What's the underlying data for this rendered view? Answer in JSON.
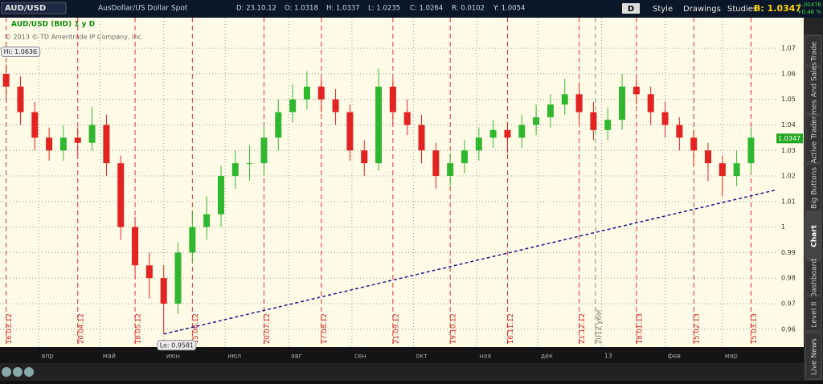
{
  "toolbar": {
    "symbol": "AUD/USD",
    "description": "AusDollar/US Dollar Spot",
    "date": "D: 23.10.12",
    "open": "O: 1.0318",
    "high": "H: 1.0337",
    "low": "L: 1.0235",
    "close": "C: 1.0264",
    "range": "R: 0.0102",
    "year": "Y: 1.0054",
    "aggregation": "D",
    "style": "Style",
    "drawings": "Drawings",
    "studies": "Studies",
    "bid": "B: 1.0347",
    "change": "+.00476",
    "change_pct": "+0.46 %"
  },
  "sidebar": {
    "tabs": [
      "Trade",
      "Times And Sales",
      "Active Trader",
      "Big Buttons",
      "Chart",
      "Dashboard",
      "Level II",
      "Live News"
    ]
  },
  "chart_data": {
    "type": "candlestick",
    "title": "AUD/USD (BID) 1 y D",
    "copyright": "© 2013 © TD Ameritrade IP Company, Inc.",
    "x": [
      "16.03.12",
      "23.03.12",
      "30.03.12",
      "06.04.12",
      "13.04.12",
      "20.04.12",
      "27.04.12",
      "04.05.12",
      "11.05.12",
      "18.05.12",
      "25.05.12",
      "01.06.12",
      "08.06.12",
      "15.06.12",
      "22.06.12",
      "29.06.12",
      "06.07.12",
      "13.07.12",
      "20.07.12",
      "27.07.12",
      "03.08.12",
      "10.08.12",
      "17.08.12",
      "24.08.12",
      "31.08.12",
      "07.09.12",
      "14.09.12",
      "21.09.12",
      "28.09.12",
      "05.10.12",
      "12.10.12",
      "19.10.12",
      "26.10.12",
      "02.11.12",
      "09.11.12",
      "16.11.12",
      "23.11.12",
      "30.11.12",
      "07.12.12",
      "14.12.12",
      "21.12.12",
      "28.12.12",
      "04.01.13",
      "11.01.13",
      "18.01.13",
      "25.01.13",
      "01.02.13",
      "08.02.13",
      "15.02.13",
      "22.02.13",
      "01.03.13",
      "08.03.13",
      "15.03.13"
    ],
    "open": [
      1.06,
      1.055,
      1.045,
      1.035,
      1.03,
      1.035,
      1.033,
      1.04,
      1.025,
      1.0,
      0.985,
      0.98,
      0.97,
      0.99,
      1.0,
      1.005,
      1.02,
      1.025,
      1.025,
      1.035,
      1.045,
      1.05,
      1.055,
      1.05,
      1.045,
      1.03,
      1.025,
      1.055,
      1.045,
      1.04,
      1.03,
      1.02,
      1.025,
      1.03,
      1.035,
      1.038,
      1.035,
      1.04,
      1.043,
      1.048,
      1.052,
      1.045,
      1.038,
      1.042,
      1.055,
      1.052,
      1.045,
      1.04,
      1.035,
      1.03,
      1.025,
      1.02,
      1.025
    ],
    "high": [
      1.0636,
      1.059,
      1.049,
      1.039,
      1.04,
      1.039,
      1.047,
      1.044,
      1.028,
      1.004,
      0.99,
      0.985,
      0.994,
      1.006,
      1.012,
      1.024,
      1.03,
      1.032,
      1.04,
      1.05,
      1.056,
      1.061,
      1.058,
      1.054,
      1.048,
      1.034,
      1.062,
      1.058,
      1.05,
      1.044,
      1.033,
      1.029,
      1.034,
      1.039,
      1.042,
      1.041,
      1.044,
      1.048,
      1.052,
      1.058,
      1.056,
      1.049,
      1.047,
      1.06,
      1.058,
      1.055,
      1.049,
      1.043,
      1.038,
      1.033,
      1.028,
      1.03,
      1.039
    ],
    "low": [
      1.05,
      1.04,
      1.03,
      1.026,
      1.026,
      1.028,
      1.03,
      1.02,
      0.995,
      0.98,
      0.972,
      0.9581,
      0.966,
      0.986,
      0.995,
      1.0,
      1.015,
      1.018,
      1.02,
      1.03,
      1.041,
      1.046,
      1.045,
      1.04,
      1.026,
      1.02,
      1.022,
      1.04,
      1.036,
      1.025,
      1.015,
      1.016,
      1.021,
      1.026,
      1.031,
      1.029,
      1.031,
      1.036,
      1.039,
      1.044,
      1.04,
      1.034,
      1.034,
      1.038,
      1.048,
      1.04,
      1.035,
      1.03,
      1.024,
      1.018,
      1.012,
      1.016,
      1.021
    ],
    "close": [
      1.055,
      1.045,
      1.035,
      1.03,
      1.035,
      1.033,
      1.04,
      1.025,
      1.0,
      0.985,
      0.98,
      0.97,
      0.99,
      1.0,
      1.005,
      1.02,
      1.025,
      1.025,
      1.035,
      1.045,
      1.05,
      1.055,
      1.05,
      1.045,
      1.03,
      1.025,
      1.055,
      1.045,
      1.04,
      1.03,
      1.02,
      1.025,
      1.03,
      1.035,
      1.038,
      1.035,
      1.04,
      1.043,
      1.048,
      1.052,
      1.045,
      1.038,
      1.042,
      1.055,
      1.052,
      1.045,
      1.04,
      1.035,
      1.03,
      1.025,
      1.02,
      1.025,
      1.035
    ],
    "up_color": "#2fb82f",
    "down_color": "#e32222",
    "xlim": [
      "13.03.12",
      "27.03.13"
    ],
    "xticks": [
      {
        "value": "01.04.12",
        "label": "апр"
      },
      {
        "value": "01.05.12",
        "label": "май"
      },
      {
        "value": "01.06.12",
        "label": "июн"
      },
      {
        "value": "01.07.12",
        "label": "июл"
      },
      {
        "value": "01.08.12",
        "label": "авг"
      },
      {
        "value": "01.09.12",
        "label": "сен"
      },
      {
        "value": "01.10.12",
        "label": "окт"
      },
      {
        "value": "01.11.12",
        "label": "ноя"
      },
      {
        "value": "01.12.12",
        "label": "дек"
      },
      {
        "value": "01.01.13",
        "label": "13"
      },
      {
        "value": "01.02.13",
        "label": "фев"
      },
      {
        "value": "01.03.13",
        "label": "мар"
      }
    ],
    "ylim": [
      0.953,
      1.082
    ],
    "yticks": [
      0.96,
      0.97,
      0.98,
      0.99,
      1,
      1.01,
      1.02,
      1.03,
      1.04,
      1.05,
      1.06,
      1.07
    ],
    "grid": true,
    "markers": [
      "16.03.12",
      "20.04.12",
      "18.05.12",
      "15.06.12",
      "20.07.12",
      "17.08.12",
      "21.09.12",
      "19.10.12",
      "16.11.12",
      "21.12.12",
      "18.01.13",
      "15.02.13",
      "15.03.13"
    ],
    "year_marker": {
      "value": "29.12.12",
      "label": "2012 year"
    },
    "hi_label": "Hi: 1.0636",
    "lo_label": "Lo: 0.9581",
    "trendline": {
      "start": [
        "01.06.12",
        0.9581
      ],
      "end": [
        "27.03.13",
        1.0145
      ],
      "color": "#1a1a8c"
    },
    "last_price": 1.0347
  }
}
